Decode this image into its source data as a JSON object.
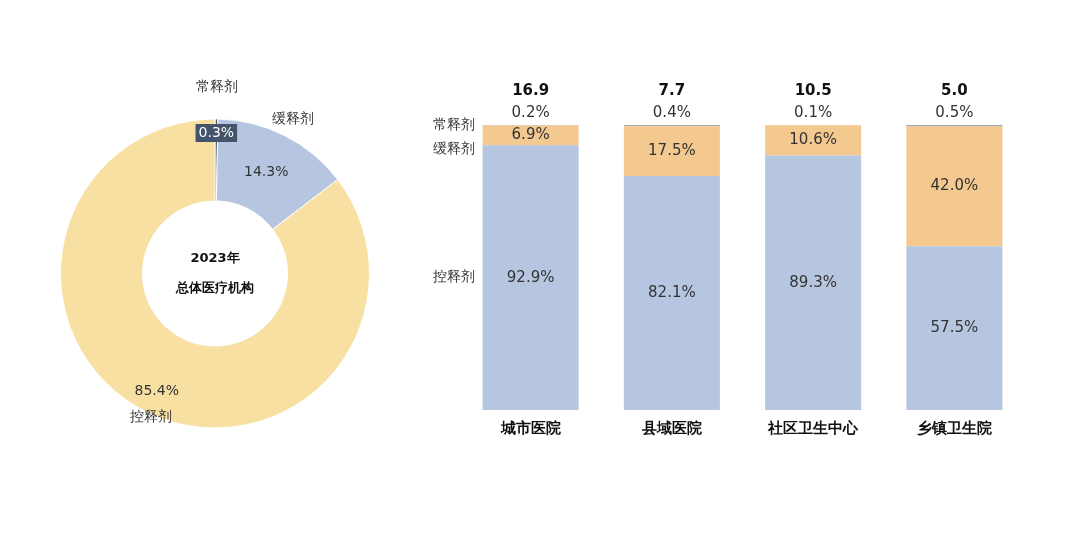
{
  "chart_data": [
    {
      "type": "donut",
      "title": "2023年",
      "subtitle": "总体医疗机构",
      "categories": [
        "常释剂",
        "缓释剂",
        "控释剂"
      ],
      "values": [
        0.3,
        14.3,
        85.4
      ],
      "colors": [
        "#44546a",
        "#b7c6e0",
        "#f8e0a3"
      ],
      "value_labels": [
        "0.3%",
        "14.3%",
        "85.4%"
      ],
      "legend": false
    },
    {
      "type": "bar",
      "stacked": true,
      "categories": [
        "城市医院",
        "县域医院",
        "社区卫生中心",
        "乡镇卫生院"
      ],
      "ylim": [
        0,
        100
      ],
      "tick_labels": "x",
      "grid": false,
      "legend": false,
      "series": [
        {
          "name": "控释剂",
          "color": "#b7c6e0",
          "values": [
            92.9,
            82.1,
            89.3,
            57.5
          ],
          "value_labels": [
            "92.9%",
            "82.1%",
            "89.3%",
            "57.5%"
          ]
        },
        {
          "name": "缓释剂",
          "color": "#f4c990",
          "values": [
            6.9,
            17.5,
            10.6,
            42.0
          ],
          "value_labels": [
            "6.9%",
            "17.5%",
            "10.6%",
            "42.0%"
          ]
        },
        {
          "name": "常释剂",
          "color": "#a6a6a6",
          "values": [
            0.2,
            0.4,
            0.1,
            0.5
          ],
          "value_labels": [
            "0.2%",
            "0.4%",
            "0.1%",
            "0.5%"
          ]
        }
      ],
      "annotations": [
        "16.9",
        "7.7",
        "10.5",
        "5.0"
      ]
    }
  ]
}
